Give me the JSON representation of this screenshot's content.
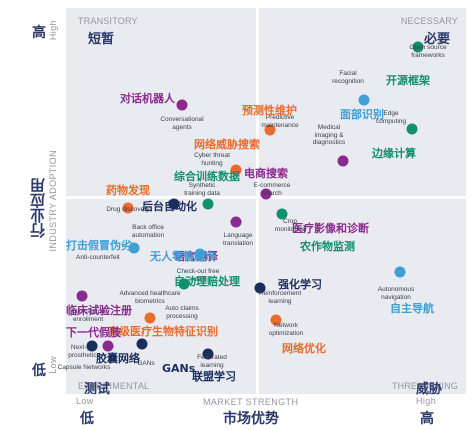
{
  "axes": {
    "x_title_en": "MARKET STRENGTH",
    "x_title_cn": "市场优势",
    "x_low_en": "Low",
    "x_low_cn": "低",
    "x_high_en": "High",
    "x_high_cn": "高",
    "y_title_en": "INDUSTRY ADOPTION",
    "y_title_cn": "行业应用",
    "y_high_en": "High",
    "y_high_cn": "高",
    "y_low_en": "Low",
    "y_low_cn": "低"
  },
  "quadrants": {
    "tl_en": "TRANSITORY",
    "tl_cn": "短暂",
    "tr_en": "NECESSARY",
    "tr_cn": "必要",
    "bl_en": "EXPERIMENTAL",
    "bl_cn": "测试",
    "br_en": "THREATENING",
    "br_cn": "威胁"
  },
  "colors": {
    "teal": "#11906d",
    "purple": "#8a2a8e",
    "orange": "#ea6b2b",
    "blue": "#3f9fd6",
    "navy": "#1a2e5e"
  },
  "items": [
    {
      "en": "Open source\nframeworks",
      "cn": "开源框架",
      "color": "teal"
    },
    {
      "en": "Facial\nrecognition",
      "cn": "面部识别",
      "color": "blue"
    },
    {
      "en": "Edge\ncomputing",
      "cn": "边缘计算",
      "color": "teal"
    },
    {
      "en": "Conversational\nagents",
      "cn": "对话机器人",
      "color": "purple"
    },
    {
      "en": "Predictive\nmaintenance",
      "cn": "预测性维护",
      "color": "orange"
    },
    {
      "en": "Cyber threat\nhunting",
      "cn": "网络威胁搜索",
      "color": "orange"
    },
    {
      "en": "Medical\nimaging &\ndiagnostics",
      "cn": "医疗影像和诊断",
      "color": "purple"
    },
    {
      "en": "Synthetic\ntraining data",
      "cn": "综合训练数据",
      "color": "teal"
    },
    {
      "en": "E-commerce\nsearch",
      "cn": "电商搜索",
      "color": "purple"
    },
    {
      "en": "Drug discovery",
      "cn": "药物发现",
      "color": "orange"
    },
    {
      "en": "Back office\nautomation",
      "cn": "后台自动化",
      "color": "navy"
    },
    {
      "en": "Language\ntranslation",
      "cn": "语言翻译",
      "color": "purple"
    },
    {
      "en": "Crop\nmonitoring",
      "cn": "农作物监测",
      "color": "teal"
    },
    {
      "en": "Anti-counterfeit",
      "cn": "打击假冒伪劣",
      "color": "blue"
    },
    {
      "en": "Check-out free\nretail",
      "cn": "无人零售超市",
      "color": "blue"
    },
    {
      "en": "Auto claims\nprocessing",
      "cn": "自动理赔处理",
      "color": "teal"
    },
    {
      "en": "Reinforcement\nlearning",
      "cn": "强化学习",
      "color": "navy"
    },
    {
      "en": "Autonomous\nnavigation",
      "cn": "自主导航",
      "color": "blue"
    },
    {
      "en": "Clinical trial\nenrollment",
      "cn": "临床试验注册",
      "color": "purple"
    },
    {
      "en": "Advanced healthcare\nbiometrics",
      "cn": "高级医疗生物特征识别",
      "color": "orange"
    },
    {
      "en": "Network\noptimization",
      "cn": "网络优化",
      "color": "orange"
    },
    {
      "en": "Next-gen\nprosthetics",
      "cn": "下一代假肢",
      "color": "purple"
    },
    {
      "en": "Capsule Networks",
      "cn": "胶囊网络",
      "color": "navy"
    },
    {
      "en": "GANs",
      "cn": "GANs",
      "color": "navy"
    },
    {
      "en": "Federated\nlearning",
      "cn": "联盟学习",
      "color": "navy"
    }
  ]
}
